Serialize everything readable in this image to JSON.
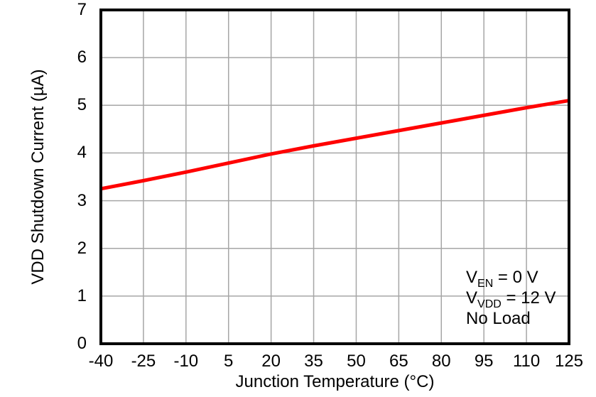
{
  "chart_data": {
    "type": "line",
    "title": "",
    "xlabel": "Junction Temperature (°C)",
    "ylabel": "VDD Shutdown Current (µA)",
    "xlim": [
      -40,
      125
    ],
    "ylim": [
      0,
      7
    ],
    "x_ticks": [
      -40,
      -25,
      -10,
      5,
      20,
      35,
      50,
      65,
      80,
      95,
      110,
      125
    ],
    "y_ticks": [
      0,
      1,
      2,
      3,
      4,
      5,
      6,
      7
    ],
    "grid": true,
    "legend_position": "none",
    "series": [
      {
        "name": "vdd-shutdown-current",
        "color": "#FF0000",
        "x": [
          -40,
          -25,
          -10,
          5,
          20,
          35,
          50,
          65,
          80,
          95,
          110,
          125
        ],
        "y": [
          3.25,
          3.42,
          3.6,
          3.79,
          3.98,
          4.15,
          4.31,
          4.47,
          4.63,
          4.79,
          4.95,
          5.1
        ]
      }
    ],
    "annotation": {
      "lines": [
        [
          {
            "t": "V"
          },
          {
            "t": "EN",
            "sub": true
          },
          {
            "t": " = 0 V"
          }
        ],
        [
          {
            "t": "V"
          },
          {
            "t": "VDD",
            "sub": true
          },
          {
            "t": " = 12 V"
          }
        ],
        [
          {
            "t": "No Load"
          }
        ]
      ]
    },
    "colors": {
      "line": "#FF0000",
      "grid": "#A6A6A6",
      "frame": "#000000",
      "text": "#000000",
      "background": "#FFFFFF"
    }
  }
}
